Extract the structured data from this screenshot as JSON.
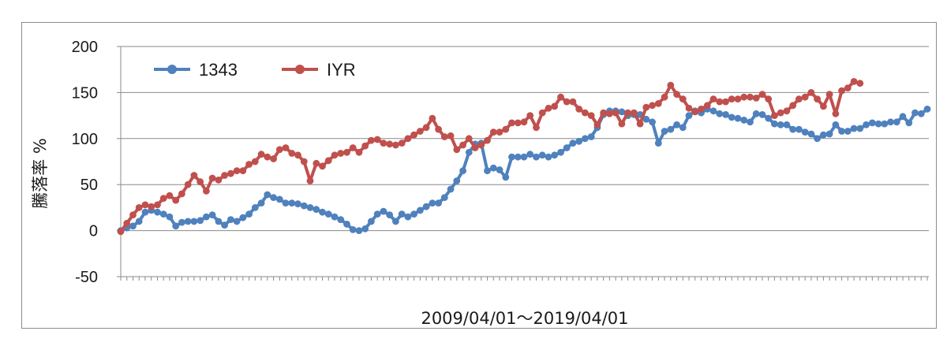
{
  "chart_data": {
    "type": "line",
    "title": "",
    "xlabel": "2009/04/01～2019/04/01",
    "ylabel": "騰落率 %",
    "ylim": [
      -50,
      200
    ],
    "yticks": [
      -50,
      0,
      50,
      100,
      150,
      200
    ],
    "grid": true,
    "legend_position": "top-left",
    "series": [
      {
        "name": "1343",
        "color": "#4f81bd",
        "values": [
          0,
          3,
          5,
          10,
          20,
          22,
          20,
          18,
          15,
          5,
          9,
          10,
          10,
          11,
          15,
          17,
          10,
          6,
          12,
          10,
          14,
          18,
          25,
          30,
          39,
          36,
          34,
          30,
          30,
          29,
          27,
          25,
          23,
          20,
          18,
          15,
          12,
          7,
          1,
          0,
          2,
          10,
          18,
          21,
          17,
          10,
          18,
          15,
          18,
          22,
          26,
          30,
          30,
          36,
          45,
          54,
          65,
          85,
          94,
          95,
          65,
          68,
          66,
          58,
          80,
          80,
          80,
          83,
          80,
          82,
          80,
          82,
          85,
          90,
          95,
          97,
          100,
          102,
          112,
          126,
          130,
          130,
          129,
          125,
          126,
          126,
          121,
          118,
          95,
          108,
          110,
          115,
          112,
          125,
          130,
          128,
          132,
          130,
          127,
          126,
          123,
          122,
          120,
          118,
          127,
          126,
          122,
          116,
          115,
          115,
          110,
          110,
          107,
          105,
          100,
          104,
          105,
          115,
          108,
          108,
          111,
          111,
          115,
          117,
          116,
          116,
          118,
          118,
          124,
          117,
          128,
          127,
          132
        ]
      },
      {
        "name": "IYR",
        "color": "#c0504d",
        "values": [
          -1,
          8,
          17,
          25,
          28,
          26,
          28,
          35,
          38,
          33,
          40,
          50,
          60,
          53,
          43,
          57,
          55,
          60,
          62,
          65,
          65,
          72,
          75,
          83,
          80,
          78,
          88,
          90,
          84,
          82,
          75,
          54,
          73,
          70,
          76,
          82,
          84,
          85,
          90,
          85,
          92,
          98,
          99,
          95,
          94,
          93,
          95,
          100,
          104,
          108,
          112,
          122,
          110,
          102,
          103,
          88,
          93,
          100,
          90,
          93,
          98,
          107,
          107,
          110,
          117,
          117,
          118,
          125,
          112,
          128,
          133,
          135,
          145,
          140,
          140,
          132,
          128,
          125,
          115,
          128,
          127,
          128,
          116,
          128,
          128,
          116,
          134,
          136,
          138,
          145,
          158,
          148,
          143,
          133,
          129,
          132,
          136,
          143,
          140,
          140,
          143,
          143,
          145,
          145,
          144,
          148,
          143,
          125,
          128,
          130,
          136,
          143,
          145,
          150,
          143,
          135,
          148,
          127,
          152,
          155,
          162,
          160
        ]
      }
    ]
  }
}
